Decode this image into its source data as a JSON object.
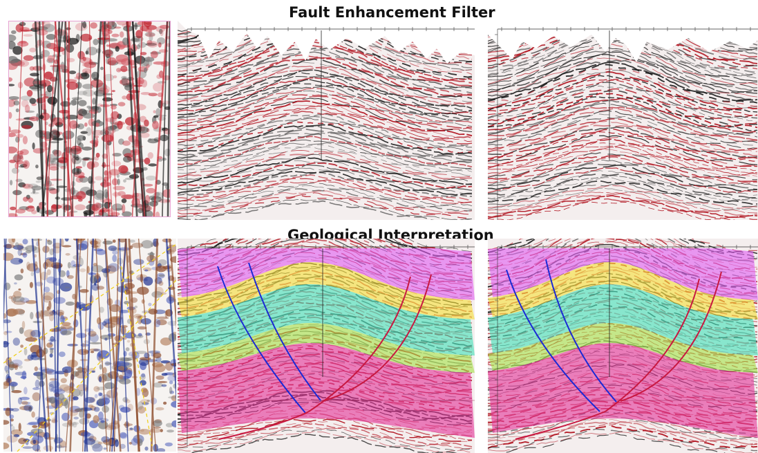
{
  "figure": {
    "top_title": "Fault Enhancement Filter",
    "bottom_title": "Geological Interpretation"
  },
  "colors": {
    "background": "#ffffff",
    "seismic_red": "#b0121e",
    "seismic_black": "#1a1a1a",
    "layer_top": "#e15ff0",
    "layer_yellow": "#f5df3a",
    "layer_teal": "#45e0b8",
    "layer_green": "#a6e24a",
    "layer_magenta": "#e4379a",
    "fault_blue": "#1a2ad6",
    "fault_red": "#c81840",
    "map_border": "#e7a2d3",
    "map_dashes": "#f0d020"
  },
  "panels": [
    {
      "id": "map-top",
      "kind": "seismic time slice (red/black)"
    },
    {
      "id": "sec-tl",
      "kind": "seismic section"
    },
    {
      "id": "sec-tr",
      "kind": "seismic section"
    },
    {
      "id": "map-bot",
      "kind": "seismic time slice (blue/brown) with fault traces"
    },
    {
      "id": "sec-bl",
      "kind": "interpreted section with horizons and faults"
    },
    {
      "id": "sec-br",
      "kind": "interpreted section with horizons and faults"
    }
  ]
}
